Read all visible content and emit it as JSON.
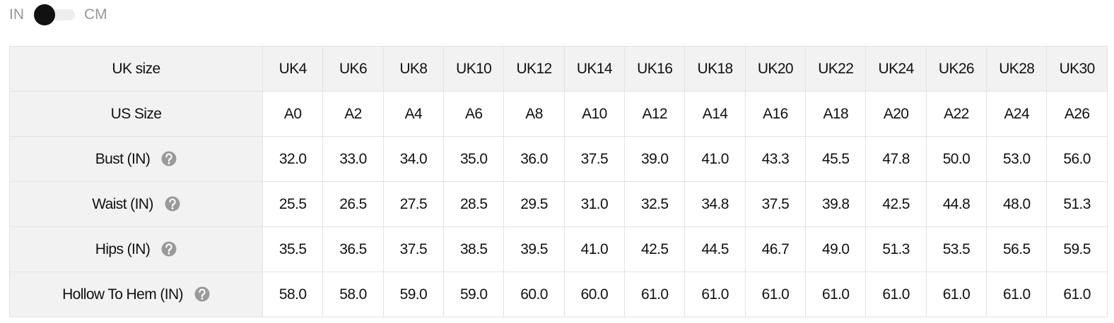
{
  "unit_toggle": {
    "left_label": "IN",
    "right_label": "CM"
  },
  "table": {
    "header": [
      "UK size",
      "UK4",
      "UK6",
      "UK8",
      "UK10",
      "UK12",
      "UK14",
      "UK16",
      "UK18",
      "UK20",
      "UK22",
      "UK24",
      "UK26",
      "UK28",
      "UK30"
    ],
    "rows": [
      {
        "label": "US Size",
        "help": false,
        "values": [
          "A0",
          "A2",
          "A4",
          "A6",
          "A8",
          "A10",
          "A12",
          "A14",
          "A16",
          "A18",
          "A20",
          "A22",
          "A24",
          "A26"
        ]
      },
      {
        "label": "Bust (IN)",
        "help": true,
        "values": [
          "32.0",
          "33.0",
          "34.0",
          "35.0",
          "36.0",
          "37.5",
          "39.0",
          "41.0",
          "43.3",
          "45.5",
          "47.8",
          "50.0",
          "53.0",
          "56.0"
        ]
      },
      {
        "label": "Waist (IN)",
        "help": true,
        "values": [
          "25.5",
          "26.5",
          "27.5",
          "28.5",
          "29.5",
          "31.0",
          "32.5",
          "34.8",
          "37.5",
          "39.8",
          "42.5",
          "44.8",
          "48.0",
          "51.3"
        ]
      },
      {
        "label": "Hips (IN)",
        "help": true,
        "values": [
          "35.5",
          "36.5",
          "37.5",
          "38.5",
          "39.5",
          "41.0",
          "42.5",
          "44.5",
          "46.7",
          "49.0",
          "51.3",
          "53.5",
          "56.5",
          "59.5"
        ]
      },
      {
        "label": "Hollow To Hem (IN)",
        "help": true,
        "values": [
          "58.0",
          "58.0",
          "59.0",
          "59.0",
          "60.0",
          "60.0",
          "61.0",
          "61.0",
          "61.0",
          "61.0",
          "61.0",
          "61.0",
          "61.0",
          "61.0"
        ]
      }
    ]
  }
}
